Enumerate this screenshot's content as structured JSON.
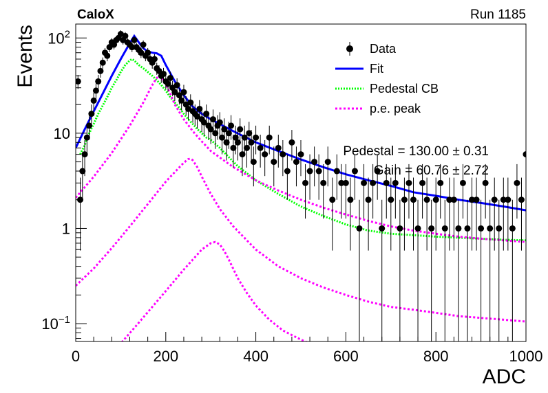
{
  "chart_data": {
    "type": "scatter",
    "experiment_label": "CaloX",
    "run_label": "Run 1185",
    "xlabel": "ADC",
    "ylabel": "Events",
    "xlim": [
      0,
      1000
    ],
    "ylim": [
      0.065,
      140
    ],
    "yscale": "log",
    "grid": false,
    "legend_position": "top-right",
    "x_ticks": [
      "0",
      "200",
      "400",
      "600",
      "800",
      "1000"
    ],
    "y_ticks": [
      {
        "value": 0.1,
        "base": "10",
        "exp": "−1"
      },
      {
        "value": 1,
        "label": "1"
      },
      {
        "value": 10,
        "label": "10"
      },
      {
        "value": 100,
        "base": "10",
        "exp": "2"
      }
    ],
    "legend": [
      {
        "label": "Data",
        "style": "marker",
        "color": "#000000"
      },
      {
        "label": "Fit",
        "style": "solid",
        "color": "#0000ff"
      },
      {
        "label": "Pedestal CB",
        "style": "dotted",
        "color": "#00ff00"
      },
      {
        "label": "p.e. peak",
        "style": "dashed",
        "color": "#ff00ff"
      }
    ],
    "fit_parameters": [
      "Pedestal = 130.00 ± 0.31",
      "Gain = 60.76 ± 2.72"
    ],
    "series": [
      {
        "name": "Data",
        "color": "#000000",
        "x": [
          5,
          10,
          15,
          20,
          25,
          30,
          35,
          40,
          45,
          50,
          55,
          60,
          65,
          70,
          75,
          80,
          85,
          90,
          95,
          100,
          105,
          110,
          115,
          120,
          125,
          130,
          135,
          140,
          145,
          150,
          155,
          160,
          165,
          170,
          175,
          180,
          185,
          190,
          195,
          200,
          205,
          210,
          215,
          220,
          225,
          230,
          235,
          240,
          245,
          250,
          255,
          260,
          265,
          270,
          275,
          280,
          285,
          290,
          295,
          300,
          305,
          310,
          315,
          320,
          325,
          330,
          335,
          340,
          345,
          350,
          355,
          360,
          365,
          370,
          375,
          380,
          385,
          390,
          395,
          400,
          410,
          420,
          430,
          440,
          450,
          460,
          470,
          480,
          490,
          500,
          510,
          520,
          530,
          540,
          550,
          560,
          570,
          580,
          590,
          600,
          610,
          620,
          630,
          640,
          650,
          660,
          670,
          680,
          690,
          700,
          710,
          720,
          730,
          740,
          750,
          760,
          770,
          780,
          790,
          800,
          810,
          820,
          830,
          840,
          850,
          860,
          870,
          880,
          890,
          900,
          910,
          920,
          930,
          940,
          950,
          960,
          970,
          980,
          990,
          1000
        ],
        "y": [
          35,
          2,
          4,
          6,
          9,
          12,
          16,
          22,
          28,
          35,
          45,
          55,
          70,
          65,
          80,
          90,
          85,
          95,
          100,
          110,
          95,
          105,
          90,
          85,
          80,
          95,
          80,
          75,
          70,
          85,
          65,
          70,
          60,
          55,
          60,
          48,
          45,
          40,
          42,
          35,
          33,
          38,
          30,
          27,
          32,
          25,
          22,
          27,
          20,
          18,
          21,
          17,
          16,
          15,
          18,
          14,
          13,
          16,
          12,
          11,
          14,
          10,
          12,
          13,
          9,
          11,
          8,
          10,
          12,
          7,
          9,
          8,
          11,
          6,
          9,
          7,
          10,
          8,
          5,
          9,
          7,
          6,
          9,
          5,
          7,
          6,
          4,
          8,
          5,
          6,
          3,
          4,
          5,
          4,
          3,
          5,
          2,
          4,
          3,
          3,
          2,
          4,
          1,
          3,
          2,
          3,
          4,
          1,
          3,
          2,
          3,
          1,
          2,
          3,
          2,
          1,
          3,
          2,
          1,
          2,
          3,
          1,
          2,
          2,
          1,
          3,
          1,
          2,
          2,
          1,
          3,
          1,
          2,
          1,
          2,
          2,
          1,
          3,
          2,
          6
        ]
      },
      {
        "name": "Fit",
        "color": "#0000ff",
        "x": [
          0,
          20,
          40,
          60,
          80,
          100,
          120,
          130,
          140,
          150,
          160,
          170,
          180,
          190,
          200,
          220,
          240,
          260,
          280,
          300,
          350,
          400,
          450,
          500,
          550,
          600,
          650,
          700,
          750,
          800,
          850,
          900,
          950,
          1000
        ],
        "y": [
          7,
          11,
          17,
          26,
          40,
          60,
          88,
          105,
          90,
          78,
          72,
          70,
          69,
          65,
          52,
          35,
          25,
          19,
          16,
          14,
          10.5,
          8,
          6.5,
          5.3,
          4.4,
          3.7,
          3.2,
          2.8,
          2.4,
          2.2,
          2,
          1.85,
          1.7,
          1.55
        ]
      },
      {
        "name": "Pedestal CB",
        "color": "#00ff00",
        "x": [
          10,
          20,
          30,
          40,
          50,
          60,
          70,
          80,
          90,
          100,
          110,
          120,
          125,
          130,
          140,
          150,
          160,
          170,
          180,
          190,
          200,
          210,
          220,
          230,
          240,
          250,
          260,
          270,
          280,
          290,
          300,
          320,
          340,
          360,
          380,
          400,
          450,
          500,
          550,
          600,
          650,
          700,
          750,
          800,
          850,
          900,
          950,
          1000
        ],
        "y": [
          6,
          7.5,
          10,
          12.5,
          16,
          19.5,
          24,
          30,
          36,
          44,
          52,
          58,
          60,
          58,
          52,
          48,
          44,
          40,
          36,
          32,
          28,
          24,
          21,
          18.5,
          16,
          14,
          12.5,
          11,
          10,
          9,
          8.5,
          7,
          5.6,
          4.5,
          3.8,
          3.2,
          2.3,
          1.7,
          1.35,
          1.1,
          0.95,
          0.88,
          0.85,
          0.82,
          0.8,
          0.78,
          0.76,
          0.75
        ]
      },
      {
        "name": "p.e. peak",
        "color": "#ff00ff",
        "x": [
          0,
          40,
          80,
          120,
          150,
          170,
          180,
          185,
          190,
          200,
          210,
          220,
          240,
          260,
          280,
          300,
          350,
          400,
          450,
          500,
          550,
          600,
          650,
          700,
          750,
          800,
          850,
          900,
          950,
          1000
        ],
        "y": [
          2.1,
          3.5,
          6.2,
          12,
          21,
          32,
          38,
          40,
          39,
          33,
          26,
          20,
          14,
          10.5,
          8.2,
          6.5,
          4.4,
          3.2,
          2.5,
          2,
          1.65,
          1.4,
          1.2,
          1.05,
          0.95,
          0.88,
          0.82,
          0.78,
          0.75,
          0.72
        ]
      },
      {
        "name": "p.e. peak",
        "color": "#ff00ff",
        "x": [
          0,
          40,
          80,
          120,
          160,
          200,
          220,
          240,
          250,
          255,
          260,
          270,
          280,
          300,
          320,
          350,
          400,
          450,
          500,
          550,
          600,
          650,
          700,
          750,
          800,
          850,
          900,
          950,
          1000
        ],
        "y": [
          0.25,
          0.38,
          0.62,
          1.05,
          1.8,
          3.1,
          3.9,
          4.9,
          5.35,
          5.4,
          5.2,
          4.4,
          3.5,
          2.3,
          1.6,
          1.05,
          0.6,
          0.4,
          0.3,
          0.24,
          0.2,
          0.17,
          0.15,
          0.14,
          0.13,
          0.12,
          0.115,
          0.11,
          0.105
        ]
      },
      {
        "name": "p.e. peak",
        "color": "#ff00ff",
        "x": [
          90,
          130,
          170,
          210,
          240,
          260,
          280,
          300,
          310,
          320,
          330,
          340,
          360,
          380,
          400,
          430,
          460,
          500,
          520,
          560,
          620
        ],
        "y": [
          0.055,
          0.09,
          0.15,
          0.25,
          0.37,
          0.47,
          0.6,
          0.7,
          0.72,
          0.68,
          0.58,
          0.47,
          0.3,
          0.21,
          0.155,
          0.11,
          0.085,
          0.068,
          0.062,
          0.055,
          0.048
        ]
      }
    ]
  }
}
